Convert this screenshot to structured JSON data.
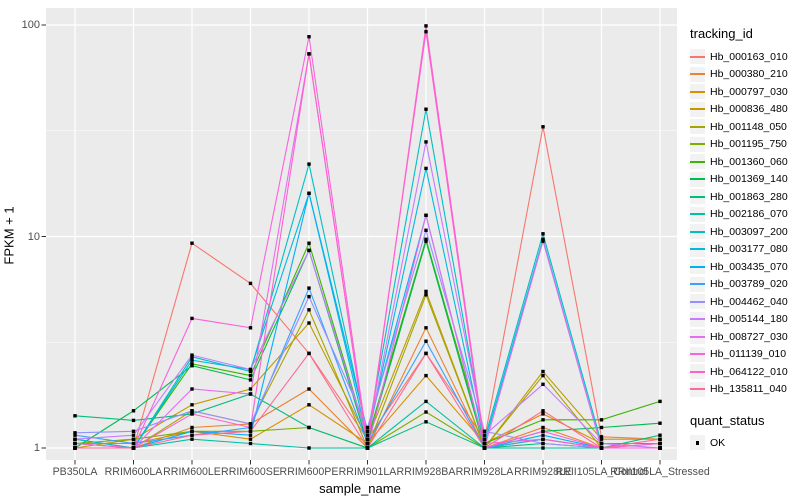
{
  "figure": {
    "y_axis_title": "FPKM + 1",
    "x_axis_title": "sample_name",
    "legend_title": "tracking_id",
    "quant_legend_title": "quant_status",
    "quant_legend_item": "OK",
    "panel_background": "#EBEBEB",
    "grid_color": "#FFFFFF",
    "axis_text_color": "#4D4D4D",
    "point_color": "#000000"
  },
  "chart_data": {
    "type": "line",
    "title": "",
    "xlabel": "sample_name",
    "ylabel": "FPKM + 1",
    "y_scale": "log10",
    "y_ticks": [
      1,
      10,
      100
    ],
    "y_minor_gridlines": [
      3.162,
      31.62
    ],
    "ylim": [
      1,
      110
    ],
    "legend_position": "right",
    "legend_title": "tracking_id",
    "point_legend": {
      "title": "quant_status",
      "label": "OK",
      "marker": "black-square"
    },
    "categories": [
      "PB350LA",
      "RRIM600LA",
      "RRIM600LE",
      "RRIM600SE",
      "RRIM600PE",
      "RRIM901LA",
      "RRIM928BA",
      "RRIM928LA",
      "RRIM928LE",
      "RRII105LA_Control",
      "RRII105LA_Stressed"
    ],
    "series": [
      {
        "name": "Hb_000163_010",
        "color": "#F8766D",
        "values": [
          1.1,
          1.0,
          9.3,
          6.0,
          2.8,
          1.1,
          2.8,
          1.1,
          33.0,
          1.13,
          1.1
        ]
      },
      {
        "name": "Hb_000380_210",
        "color": "#EA8331",
        "values": [
          1.0,
          1.0,
          1.25,
          1.3,
          1.9,
          1.0,
          3.7,
          1.0,
          1.25,
          1.0,
          1.0
        ]
      },
      {
        "name": "Hb_000797_030",
        "color": "#D89000",
        "values": [
          1.05,
          1.05,
          1.2,
          1.1,
          1.6,
          1.05,
          2.2,
          1.05,
          1.45,
          1.05,
          1.05
        ]
      },
      {
        "name": "Hb_000836_480",
        "color": "#C09B00",
        "values": [
          1.0,
          1.1,
          1.6,
          1.9,
          3.9,
          1.1,
          5.5,
          1.0,
          2.3,
          1.1,
          1.1
        ]
      },
      {
        "name": "Hb_001148_050",
        "color": "#A3A500",
        "values": [
          1.0,
          1.0,
          1.5,
          1.3,
          4.5,
          1.0,
          5.3,
          1.0,
          2.2,
          1.0,
          1.0
        ]
      },
      {
        "name": "Hb_001195_750",
        "color": "#7CAE00",
        "values": [
          1.05,
          1.1,
          1.2,
          1.2,
          1.25,
          1.0,
          1.48,
          1.0,
          1.1,
          1.0,
          1.05
        ]
      },
      {
        "name": "Hb_001360_060",
        "color": "#39B600",
        "values": [
          1.0,
          1.0,
          2.5,
          2.2,
          9.3,
          1.1,
          9.7,
          1.05,
          1.36,
          1.36,
          1.66
        ]
      },
      {
        "name": "Hb_001369_140",
        "color": "#00BB4E",
        "values": [
          1.0,
          1.5,
          2.45,
          2.1,
          8.6,
          1.05,
          9.5,
          1.0,
          1.2,
          1.25,
          1.31
        ]
      },
      {
        "name": "Hb_001863_280",
        "color": "#00BF7D",
        "values": [
          1.42,
          1.35,
          1.45,
          1.8,
          1.25,
          1.0,
          1.33,
          1.0,
          1.05,
          1.0,
          1.15
        ]
      },
      {
        "name": "Hb_002186_070",
        "color": "#00C1A3",
        "values": [
          1.0,
          1.0,
          1.1,
          1.05,
          1.0,
          1.0,
          1.66,
          1.0,
          1.0,
          1.0,
          1.0
        ]
      },
      {
        "name": "Hb_003097_200",
        "color": "#00BFC4",
        "values": [
          1.1,
          1.0,
          2.7,
          2.3,
          22.0,
          1.15,
          40.0,
          1.1,
          10.3,
          1.05,
          1.05
        ]
      },
      {
        "name": "Hb_003177_080",
        "color": "#00BAE0",
        "values": [
          1.05,
          1.0,
          2.6,
          2.35,
          16.0,
          1.1,
          21.0,
          1.05,
          9.7,
          1.0,
          1.0
        ]
      },
      {
        "name": "Hb_003435_070",
        "color": "#00B0F6",
        "values": [
          1.0,
          1.0,
          1.2,
          1.15,
          16.0,
          1.2,
          12.6,
          1.0,
          1.15,
          1.0,
          1.0
        ]
      },
      {
        "name": "Hb_003789_020",
        "color": "#35A2FF",
        "values": [
          1.15,
          1.05,
          1.15,
          1.25,
          5.7,
          1.05,
          3.2,
          1.0,
          1.1,
          1.0,
          1.0
        ]
      },
      {
        "name": "Hb_004462_040",
        "color": "#9590FF",
        "values": [
          1.18,
          1.2,
          1.5,
          1.3,
          5.2,
          1.25,
          10.7,
          1.2,
          1.05,
          1.0,
          1.05
        ]
      },
      {
        "name": "Hb_005144_180",
        "color": "#C77CFF",
        "values": [
          1.1,
          1.15,
          2.75,
          2.35,
          8.6,
          1.1,
          28.0,
          1.15,
          2.0,
          1.05,
          1.0
        ]
      },
      {
        "name": "Hb_008727_030",
        "color": "#E76BF3",
        "values": [
          1.0,
          1.0,
          1.9,
          1.8,
          73.0,
          1.0,
          12.6,
          1.0,
          9.5,
          1.0,
          1.0
        ]
      },
      {
        "name": "Hb_011139_010",
        "color": "#FA62DB",
        "values": [
          1.0,
          1.0,
          4.1,
          3.7,
          88.0,
          1.05,
          93.0,
          1.0,
          1.2,
          1.0,
          1.0
        ]
      },
      {
        "name": "Hb_064122_010",
        "color": "#FF61CC",
        "values": [
          1.05,
          1.0,
          1.45,
          1.25,
          73.0,
          1.0,
          99.0,
          1.05,
          1.1,
          1.0,
          1.05
        ]
      },
      {
        "name": "Hb_135811_040",
        "color": "#FF6A98",
        "values": [
          1.0,
          1.0,
          1.15,
          1.2,
          2.8,
          1.0,
          2.8,
          1.0,
          1.5,
          1.0,
          1.1
        ]
      }
    ]
  }
}
